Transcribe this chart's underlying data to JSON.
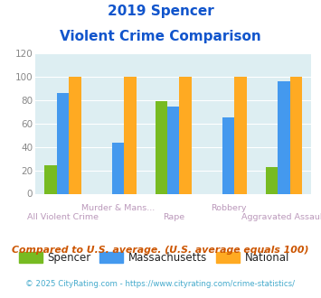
{
  "title_line1": "2019 Spencer",
  "title_line2": "Violent Crime Comparison",
  "categories": [
    "All Violent Crime",
    "Murder & Mans...",
    "Rape",
    "Robbery",
    "Aggravated Assault"
  ],
  "spencer": [
    24,
    0,
    79,
    0,
    23
  ],
  "massachusetts": [
    86,
    44,
    75,
    65,
    96
  ],
  "national": [
    100,
    100,
    100,
    100,
    100
  ],
  "spencer_color": "#77bb22",
  "massachusetts_color": "#4499ee",
  "national_color": "#ffaa22",
  "ylim": [
    0,
    120
  ],
  "yticks": [
    0,
    20,
    40,
    60,
    80,
    100,
    120
  ],
  "bg_color": "#ddeef2",
  "title_color": "#1155cc",
  "xlabel_color_top": "#bb99bb",
  "xlabel_color_bot": "#bb99bb",
  "footer1": "Compared to U.S. average. (U.S. average equals 100)",
  "footer2": "© 2025 CityRating.com - https://www.cityrating.com/crime-statistics/",
  "footer1_color": "#cc5500",
  "footer2_color": "#44aacc",
  "bar_width": 0.22
}
